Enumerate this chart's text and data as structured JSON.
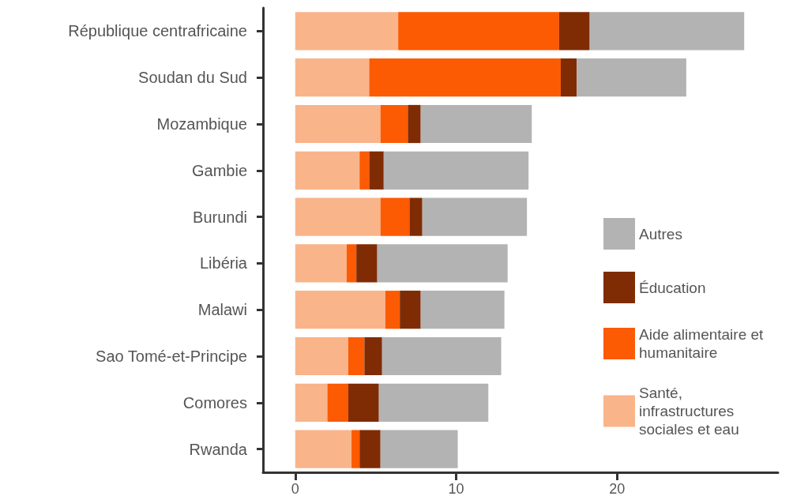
{
  "chart_data": {
    "type": "bar",
    "orientation": "horizontal",
    "stacked": true,
    "categories": [
      "République centrafricaine",
      "Soudan du Sud",
      "Mozambique",
      "Gambie",
      "Burundi",
      "Libéria",
      "Malawi",
      "Sao Tomé-et-Principe",
      "Comores",
      "Rwanda"
    ],
    "series": [
      {
        "name": "Santé, infrastructures sociales et eau",
        "color": "#f9b48a",
        "values": [
          6.4,
          4.6,
          5.3,
          4.0,
          5.3,
          3.2,
          5.6,
          3.3,
          2.0,
          3.5
        ]
      },
      {
        "name": "Aide alimentaire et humanitaire",
        "color": "#fc5a03",
        "values": [
          10.0,
          11.9,
          1.7,
          0.6,
          1.8,
          0.6,
          0.9,
          1.0,
          1.3,
          0.5
        ]
      },
      {
        "name": "Éducation",
        "color": "#7f2c04",
        "values": [
          1.9,
          1.0,
          0.8,
          0.9,
          0.8,
          1.3,
          1.3,
          1.1,
          1.9,
          1.3
        ]
      },
      {
        "name": "Autres",
        "color": "#b3b3b3",
        "values": [
          9.6,
          6.8,
          6.9,
          9.0,
          6.5,
          8.1,
          5.2,
          7.4,
          6.8,
          4.8
        ]
      }
    ],
    "xlim": [
      -2,
      30
    ],
    "xticks": [
      0,
      10,
      20
    ],
    "grid": false,
    "legend": "bottom right"
  }
}
